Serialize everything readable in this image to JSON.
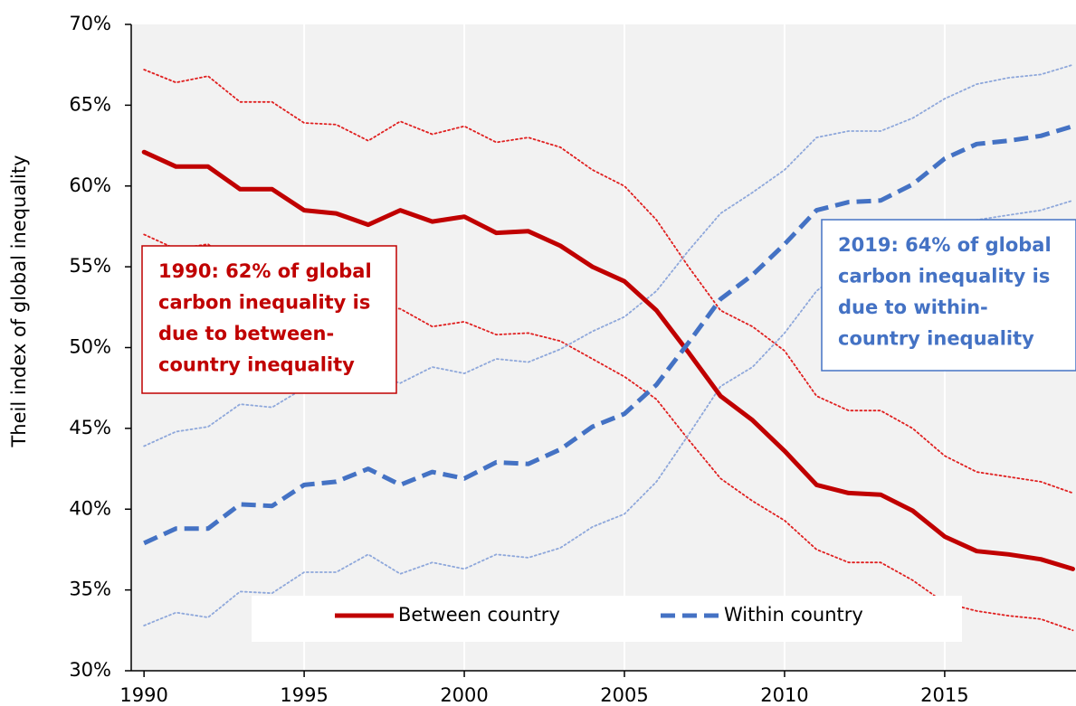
{
  "chart_data": {
    "type": "line",
    "y_label": "Theil index of global inequality",
    "x": [
      1990,
      1991,
      1992,
      1993,
      1994,
      1995,
      1996,
      1997,
      1998,
      1999,
      2000,
      2001,
      2002,
      2003,
      2004,
      2005,
      2006,
      2007,
      2008,
      2009,
      2010,
      2011,
      2012,
      2013,
      2014,
      2015,
      2016,
      2017,
      2018,
      2019
    ],
    "series": [
      {
        "name": "Between country",
        "color": "#c00000",
        "style": "solid",
        "values": [
          62.1,
          61.2,
          61.2,
          59.8,
          59.8,
          58.5,
          58.3,
          57.6,
          58.5,
          57.8,
          58.1,
          57.1,
          57.2,
          56.3,
          55.0,
          54.1,
          52.3,
          49.7,
          47.0,
          45.5,
          43.6,
          41.5,
          41.0,
          40.9,
          39.9,
          38.3,
          37.4,
          37.2,
          36.9,
          36.3
        ]
      },
      {
        "name": "Within country",
        "color": "#4472c4",
        "style": "dashed",
        "values": [
          37.9,
          38.8,
          38.8,
          40.3,
          40.2,
          41.5,
          41.7,
          42.5,
          41.5,
          42.3,
          41.9,
          42.9,
          42.8,
          43.7,
          45.1,
          45.9,
          47.7,
          50.3,
          53.0,
          54.5,
          56.4,
          58.5,
          59.0,
          59.1,
          60.1,
          61.7,
          62.6,
          62.8,
          63.1,
          63.7
        ]
      },
      {
        "color": "#e02020",
        "style": "dotted",
        "values": [
          67.2,
          66.4,
          66.8,
          65.2,
          65.2,
          63.9,
          63.8,
          62.8,
          64.0,
          63.2,
          63.7,
          62.7,
          63.0,
          62.4,
          61.0,
          60.0,
          57.9,
          55.0,
          52.3,
          51.3,
          49.8,
          47.0,
          46.1,
          46.1,
          45.0,
          43.3,
          42.3,
          42.0,
          41.7,
          41.0
        ]
      },
      {
        "color": "#e02020",
        "style": "dotted",
        "values": [
          57.0,
          56.1,
          56.4,
          54.9,
          54.9,
          53.6,
          53.5,
          52.6,
          52.4,
          51.3,
          51.6,
          50.8,
          50.9,
          50.4,
          49.3,
          48.2,
          46.8,
          44.3,
          41.9,
          40.5,
          39.3,
          37.5,
          36.7,
          36.7,
          35.6,
          34.2,
          33.7,
          33.4,
          33.2,
          32.5
        ]
      },
      {
        "color": "#8fa8db",
        "style": "dotted",
        "values": [
          43.9,
          44.8,
          45.1,
          46.5,
          46.3,
          47.5,
          47.7,
          48.4,
          47.8,
          48.8,
          48.4,
          49.3,
          49.1,
          49.9,
          51.0,
          51.9,
          53.5,
          56.0,
          58.3,
          59.6,
          61.0,
          63.0,
          63.4,
          63.4,
          64.2,
          65.4,
          66.3,
          66.7,
          66.9,
          67.5
        ]
      },
      {
        "color": "#8fa8db",
        "style": "dotted",
        "values": [
          32.8,
          33.6,
          33.3,
          34.9,
          34.8,
          36.1,
          36.1,
          37.2,
          36.0,
          36.7,
          36.3,
          37.2,
          37.0,
          37.6,
          38.9,
          39.7,
          41.7,
          44.6,
          47.6,
          48.8,
          50.9,
          53.5,
          55.0,
          55.3,
          56.5,
          57.4,
          57.9,
          58.2,
          58.5,
          59.1
        ]
      }
    ],
    "xlim": [
      1989.6,
      2019.1
    ],
    "xticks": [
      1990,
      1995,
      2000,
      2005,
      2010,
      2015
    ],
    "ylim": [
      30,
      70
    ],
    "yticks": [
      {
        "value": 30,
        "label": "30%"
      },
      {
        "value": 35,
        "label": "35%"
      },
      {
        "value": 40,
        "label": "40%"
      },
      {
        "value": 45,
        "label": "45%"
      },
      {
        "value": 50,
        "label": "50%"
      },
      {
        "value": 55,
        "label": "55%"
      },
      {
        "value": 60,
        "label": "60%"
      },
      {
        "value": 65,
        "label": "65%"
      },
      {
        "value": 70,
        "label": "70%"
      }
    ],
    "grid": "x",
    "annotations": [
      {
        "color": "#c00000",
        "lines": [
          "1990: 62% of global",
          "carbon inequality is",
          "due to between-",
          "country inequality"
        ]
      },
      {
        "color": "#4472c4",
        "lines": [
          "2019: 64% of global",
          "carbon inequality is",
          "due to within-",
          "country inequality"
        ]
      }
    ]
  }
}
